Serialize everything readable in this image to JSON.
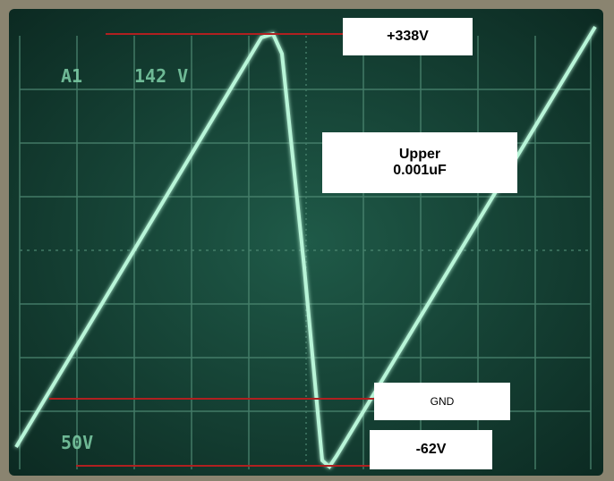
{
  "annotations": {
    "peak": "+338V",
    "capacitor": [
      "Upper",
      "0.001uF"
    ],
    "ground": "GND",
    "trough": "-62V"
  },
  "screen": {
    "channel": "A1",
    "reading": "142 V",
    "scale": "50V"
  }
}
